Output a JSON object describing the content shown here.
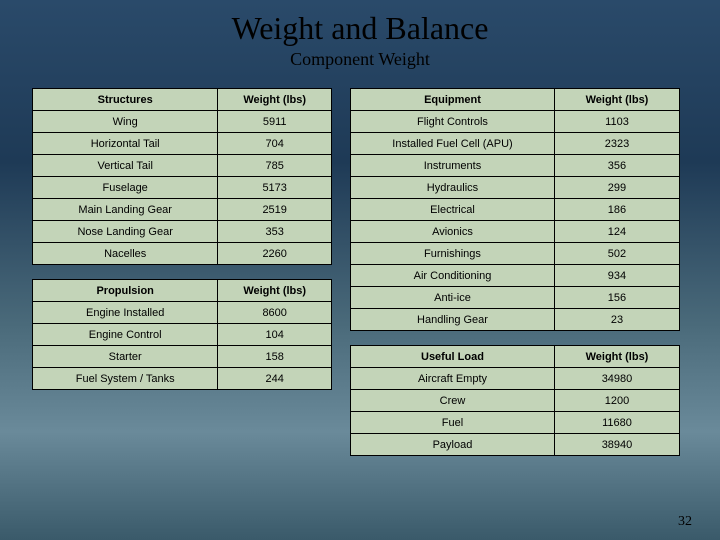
{
  "header": {
    "title": "Weight and Balance",
    "subtitle": "Component Weight"
  },
  "slide_number": "32",
  "tables": {
    "structures": {
      "header": [
        "Structures",
        "Weight (lbs)"
      ],
      "rows": [
        [
          "Wing",
          "5911"
        ],
        [
          "Horizontal Tail",
          "704"
        ],
        [
          "Vertical Tail",
          "785"
        ],
        [
          "Fuselage",
          "5173"
        ],
        [
          "Main Landing Gear",
          "2519"
        ],
        [
          "Nose Landing Gear",
          "353"
        ],
        [
          "Nacelles",
          "2260"
        ]
      ]
    },
    "propulsion": {
      "header": [
        "Propulsion",
        "Weight (lbs)"
      ],
      "rows": [
        [
          "Engine Installed",
          "8600"
        ],
        [
          "Engine Control",
          "104"
        ],
        [
          "Starter",
          "158"
        ],
        [
          "Fuel System / Tanks",
          "244"
        ]
      ]
    },
    "equipment": {
      "header": [
        "Equipment",
        "Weight (lbs)"
      ],
      "rows": [
        [
          "Flight Controls",
          "1103"
        ],
        [
          "Installed Fuel Cell (APU)",
          "2323"
        ],
        [
          "Instruments",
          "356"
        ],
        [
          "Hydraulics",
          "299"
        ],
        [
          "Electrical",
          "186"
        ],
        [
          "Avionics",
          "124"
        ],
        [
          "Furnishings",
          "502"
        ],
        [
          "Air Conditioning",
          "934"
        ],
        [
          "Anti-ice",
          "156"
        ],
        [
          "Handling Gear",
          "23"
        ]
      ]
    },
    "useful_load": {
      "header": [
        "Useful Load",
        "Weight (lbs)"
      ],
      "rows": [
        [
          "Aircraft  Empty",
          "34980"
        ],
        [
          "Crew",
          "1200"
        ],
        [
          "Fuel",
          "11680"
        ],
        [
          "Payload",
          "38940"
        ]
      ]
    }
  },
  "style": {
    "cell_bg": "#c3d4b8",
    "border_color": "#000000",
    "font_size_cell": 11,
    "font_size_title": 32,
    "font_size_subtitle": 18
  }
}
